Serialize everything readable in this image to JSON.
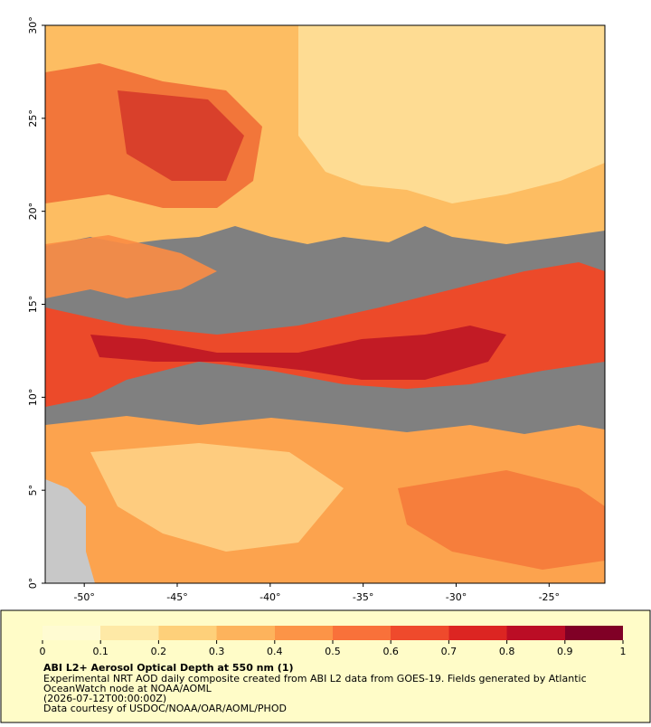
{
  "map": {
    "xlim": [
      -52.1,
      -22
    ],
    "ylim": [
      0,
      30
    ],
    "xticks": [
      {
        "value": -50,
        "label": "-50°"
      },
      {
        "value": -45,
        "label": "-45°"
      },
      {
        "value": -40,
        "label": "-40°"
      },
      {
        "value": -35,
        "label": "-35°"
      },
      {
        "value": -30,
        "label": "-30°"
      },
      {
        "value": -25,
        "label": "-25°"
      }
    ],
    "yticks": [
      {
        "value": 0,
        "label": "0°"
      },
      {
        "value": 5,
        "label": "5°"
      },
      {
        "value": 10,
        "label": "10°"
      },
      {
        "value": 15,
        "label": "15°"
      },
      {
        "value": 20,
        "label": "20°"
      },
      {
        "value": 25,
        "label": "25°"
      },
      {
        "value": 30,
        "label": "30°"
      }
    ]
  },
  "colorbar": {
    "lim": [
      0,
      1
    ],
    "ticks": [
      0,
      0.1,
      0.2,
      0.3,
      0.4,
      0.5,
      0.6,
      0.7,
      0.8,
      0.9,
      1
    ],
    "colors": [
      "#fffbd2",
      "#fee9a6",
      "#fed07a",
      "#fdb35c",
      "#fc9447",
      "#f9713a",
      "#ef4a2c",
      "#dc2522",
      "#bb0d25",
      "#800026"
    ]
  },
  "caption": {
    "title": "ABI L2+ Aerosol Optical Depth at 550 nm (1)",
    "lines": [
      "Experimental NRT AOD daily composite created from ABI L2 data from GOES-19. Fields generated by Atlantic",
      "OceanWatch node at NOAA/AOML",
      "(2026-07-12T00:00:00Z)",
      "Data courtesy of USDOC/NOAA/OAR/AOML/PHOD"
    ]
  }
}
